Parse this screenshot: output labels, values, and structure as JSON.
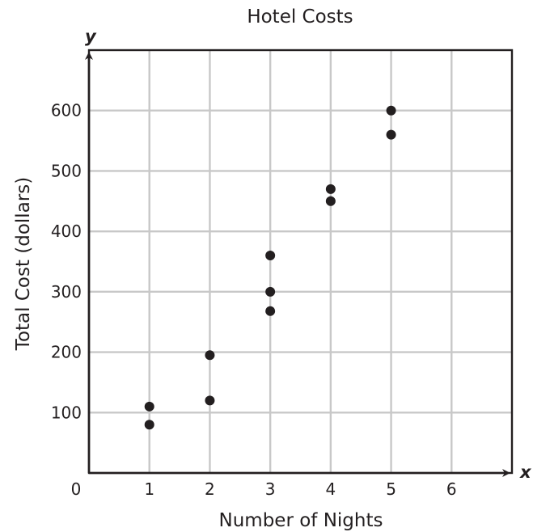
{
  "chart_data": {
    "type": "scatter",
    "title": "Hotel Costs",
    "xlabel": "Number of Nights",
    "ylabel": "Total Cost (dollars)",
    "x_axis_letter": "x",
    "y_axis_letter": "y",
    "xlim": [
      0,
      7
    ],
    "ylim": [
      0,
      700
    ],
    "x_ticks": [
      0,
      1,
      2,
      3,
      4,
      5,
      6
    ],
    "y_ticks": [
      100,
      200,
      300,
      400,
      500,
      600
    ],
    "grid": true,
    "x": [
      1,
      1,
      2,
      2,
      3,
      3,
      3,
      4,
      4,
      5,
      5
    ],
    "y": [
      110,
      80,
      195,
      120,
      360,
      300,
      268,
      470,
      450,
      600,
      560
    ]
  }
}
